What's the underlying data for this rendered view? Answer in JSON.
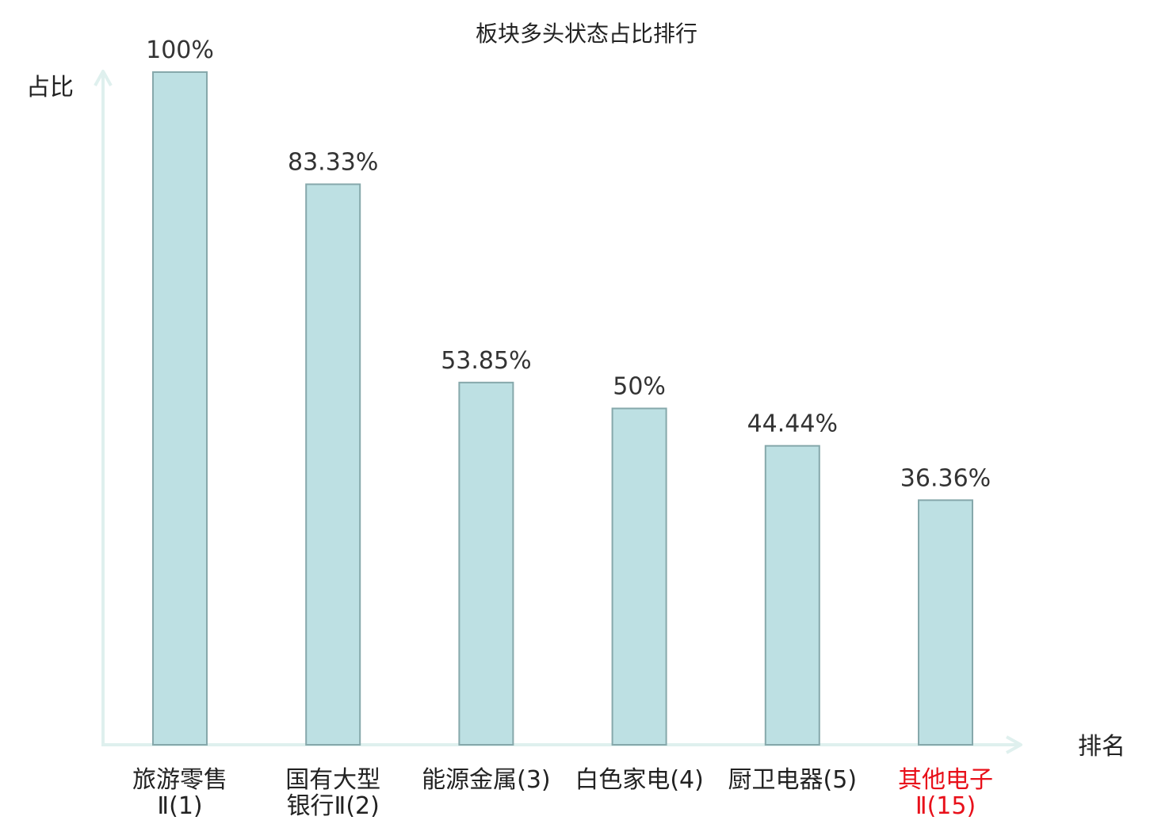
{
  "chart_data": {
    "type": "bar",
    "title": "板块多头状态占比排行",
    "ylabel": "占比",
    "xlabel": "排名",
    "ylim": [
      0,
      100
    ],
    "grid": false,
    "categories": [
      {
        "lines": [
          "旅游零售",
          "Ⅱ(1)"
        ],
        "highlight": false
      },
      {
        "lines": [
          "国有大型",
          "银行Ⅱ(2)"
        ],
        "highlight": false
      },
      {
        "lines": [
          "能源金属(3)"
        ],
        "highlight": false
      },
      {
        "lines": [
          "白色家电(4)"
        ],
        "highlight": false
      },
      {
        "lines": [
          "厨卫电器(5)"
        ],
        "highlight": false
      },
      {
        "lines": [
          "其他电子",
          "Ⅱ(15)"
        ],
        "highlight": true
      }
    ],
    "values": [
      100,
      83.33,
      53.85,
      50,
      44.44,
      36.36
    ],
    "value_labels": [
      "100%",
      "83.33%",
      "53.85%",
      "50%",
      "44.44%",
      "36.36%"
    ]
  },
  "colors": {
    "bar_fill": "#bde0e3",
    "bar_stroke": "#86a8ab",
    "axis": "#dff0ee",
    "highlight_text": "#e8101a",
    "normal_text": "#222222"
  }
}
